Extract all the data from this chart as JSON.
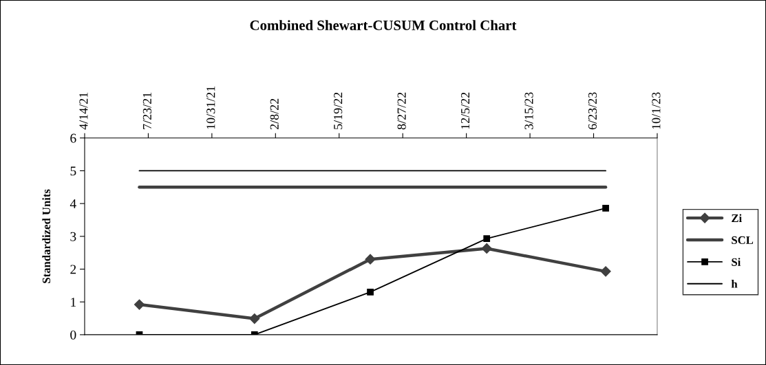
{
  "chart_data": {
    "type": "line",
    "title": "Combined Shewart-CUSUM Control Chart",
    "ylabel": "Standardized Units",
    "x": [
      "2021-07-09",
      "2022-01-06",
      "2022-07-07",
      "2023-01-06",
      "2023-07-12"
    ],
    "series": [
      {
        "name": "Zi",
        "color": "#404040",
        "marker": "diamond",
        "values": [
          0.92,
          0.49,
          2.3,
          2.63,
          1.93
        ]
      },
      {
        "name": "SCL",
        "color": "#404040",
        "marker": "none",
        "values": [
          4.5,
          4.5,
          4.5,
          4.5,
          4.5
        ]
      },
      {
        "name": "Si",
        "color": "#000000",
        "marker": "square",
        "values": [
          0,
          0,
          1.3,
          2.93,
          3.86
        ]
      },
      {
        "name": "h",
        "color": "#000000",
        "marker": "none",
        "values": [
          5,
          5,
          5,
          5,
          5
        ]
      }
    ],
    "xlim": [
      "2021-04-14",
      "2023-10-01"
    ],
    "xticks": [
      {
        "value": "2021-04-14",
        "label": "4/14/21"
      },
      {
        "value": "2021-07-23",
        "label": "7/23/21"
      },
      {
        "value": "2021-10-31",
        "label": "10/31/21"
      },
      {
        "value": "2022-02-08",
        "label": "2/8/22"
      },
      {
        "value": "2022-05-19",
        "label": "5/19/22"
      },
      {
        "value": "2022-08-27",
        "label": "8/27/22"
      },
      {
        "value": "2022-12-05",
        "label": "12/5/22"
      },
      {
        "value": "2023-03-15",
        "label": "3/15/23"
      },
      {
        "value": "2023-06-23",
        "label": "6/23/23"
      },
      {
        "value": "2023-10-01",
        "label": "10/1/23"
      }
    ],
    "ylim": [
      0,
      6
    ],
    "yticks": [
      0,
      1,
      2,
      3,
      4,
      5,
      6
    ],
    "grid": false,
    "legend": "right",
    "line_style": "solid"
  }
}
